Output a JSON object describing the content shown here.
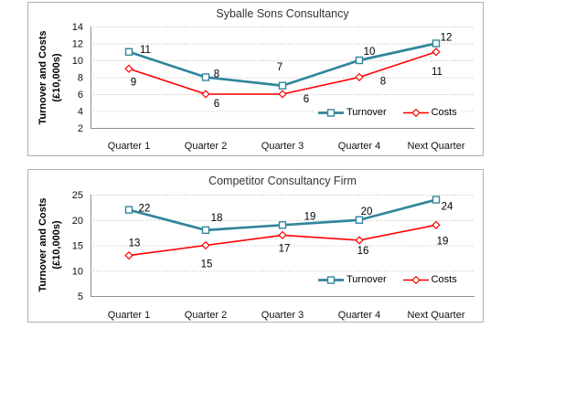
{
  "page": {
    "background_color": "#ffffff"
  },
  "chart_data": [
    {
      "type": "line",
      "title": "Syballe Sons Consultancy",
      "ylabel": "Turnover and Costs (£10,000s)",
      "ylabel_lines": [
        "Turnover and Costs",
        "(£10,000s)"
      ],
      "xlabel": "",
      "categories": [
        "Quarter 1",
        "Quarter 2",
        "Quarter 3",
        "Quarter 4",
        "Next Quarter"
      ],
      "series": [
        {
          "name": "Turnover",
          "values": [
            11,
            8,
            7,
            10,
            12
          ],
          "color": "#31859C",
          "marker": "square",
          "stroke_width": 2.7
        },
        {
          "name": "Costs",
          "values": [
            9,
            6,
            6,
            8,
            11
          ],
          "color": "#FF0000",
          "marker": "diamond",
          "stroke_width": 1.6
        }
      ],
      "ylim": [
        2,
        14
      ],
      "y_ticks": [
        2,
        4,
        6,
        8,
        10,
        12,
        14
      ],
      "grid": "horizontal-dotted",
      "data_labels": true,
      "legend_position": "inside-bottom-right",
      "label_offsets": {
        "Turnover": [
          [
            18,
            -3
          ],
          [
            12,
            -4
          ],
          [
            -3,
            -21
          ],
          [
            11,
            -10
          ],
          [
            11,
            -7
          ]
        ],
        "Costs": [
          [
            5,
            14
          ],
          [
            12,
            10
          ],
          [
            26,
            5
          ],
          [
            26,
            4
          ],
          [
            1,
            21
          ]
        ]
      }
    },
    {
      "type": "line",
      "title": "Competitor Consultancy Firm",
      "ylabel": "Turnover and Costs (£10,000s)",
      "ylabel_lines": [
        "Turnover and Costs",
        "(£10,000s)"
      ],
      "xlabel": "",
      "categories": [
        "Quarter 1",
        "Quarter 2",
        "Quarter 3",
        "Quarter 4",
        "Next Quarter"
      ],
      "series": [
        {
          "name": "Turnover",
          "values": [
            22,
            18,
            19,
            20,
            24
          ],
          "color": "#31859C",
          "marker": "square",
          "stroke_width": 2.7
        },
        {
          "name": "Costs",
          "values": [
            13,
            15,
            17,
            16,
            19
          ],
          "color": "#FF0000",
          "marker": "diamond",
          "stroke_width": 1.6
        }
      ],
      "ylim": [
        5,
        25
      ],
      "y_ticks": [
        5,
        10,
        15,
        20,
        25
      ],
      "grid": "horizontal-dotted",
      "data_labels": true,
      "legend_position": "inside-bottom-right",
      "label_offsets": {
        "Turnover": [
          [
            17,
            -2
          ],
          [
            12,
            -14
          ],
          [
            30,
            -10
          ],
          [
            8,
            -10
          ],
          [
            12,
            7
          ]
        ],
        "Costs": [
          [
            6,
            -14
          ],
          [
            1,
            20
          ],
          [
            2,
            14
          ],
          [
            4,
            11
          ],
          [
            7,
            17
          ]
        ]
      }
    }
  ]
}
